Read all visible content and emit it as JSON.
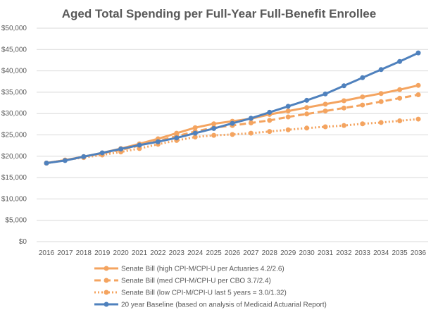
{
  "chart_data": {
    "type": "line",
    "title": "Aged Total Spending per Full-Year Full-Benefit Enrollee",
    "xlabel": "",
    "ylabel": "",
    "ylim": [
      0,
      50000
    ],
    "yticks": [
      0,
      5000,
      10000,
      15000,
      20000,
      25000,
      30000,
      35000,
      40000,
      45000,
      50000
    ],
    "ytick_labels": [
      "$0",
      "$5,000",
      "$10,000",
      "$15,000",
      "$20,000",
      "$25,000",
      "$30,000",
      "$35,000",
      "$40,000",
      "$45,000",
      "$50,000"
    ],
    "x": [
      "2016",
      "2017",
      "2018",
      "2019",
      "2020",
      "2021",
      "2022",
      "2023",
      "2024",
      "2025",
      "2026",
      "2027",
      "2028",
      "2029",
      "2030",
      "2031",
      "2032",
      "2033",
      "2034",
      "2035",
      "2036"
    ],
    "grid": true,
    "legend_placement": "bottom",
    "series": [
      {
        "name": "Senate Bill (high CPI-M/CPI-U per Actuaries 4.2/2.6)",
        "color": "#f4a460",
        "dash": "solid",
        "values": [
          18400,
          19100,
          19900,
          20800,
          21800,
          22900,
          24100,
          25400,
          26700,
          27600,
          28200,
          28800,
          29800,
          30600,
          31400,
          32200,
          33000,
          33900,
          34700,
          35600,
          36600
        ]
      },
      {
        "name": "Senate Bill (med CPI-M/CPI-U per CBO 3.7/2.4)",
        "color": "#f4a460",
        "dash": "dashed",
        "values": [
          18400,
          19100,
          19900,
          20700,
          21500,
          22500,
          23600,
          24700,
          25800,
          26700,
          27200,
          27800,
          28400,
          29200,
          29900,
          30600,
          31300,
          32000,
          32800,
          33600,
          34400
        ]
      },
      {
        "name": "Senate Bill (low CPI-M/CPI-U last 5 years = 3.0/1.32)",
        "color": "#f4a460",
        "dash": "dotted",
        "values": [
          18400,
          19100,
          19700,
          20300,
          21000,
          21800,
          22800,
          23700,
          24500,
          24900,
          25100,
          25400,
          25800,
          26200,
          26600,
          26900,
          27200,
          27600,
          27900,
          28300,
          28700
        ]
      },
      {
        "name": "20 year Baseline (based on analysis of Medicaid Actuarial Report)",
        "color": "#4f81bd",
        "dash": "solid",
        "values": [
          18400,
          19000,
          19900,
          20800,
          21700,
          22600,
          23400,
          24300,
          25400,
          26500,
          27700,
          28900,
          30300,
          31700,
          33100,
          34600,
          36500,
          38400,
          40300,
          42200,
          44200
        ]
      }
    ]
  }
}
